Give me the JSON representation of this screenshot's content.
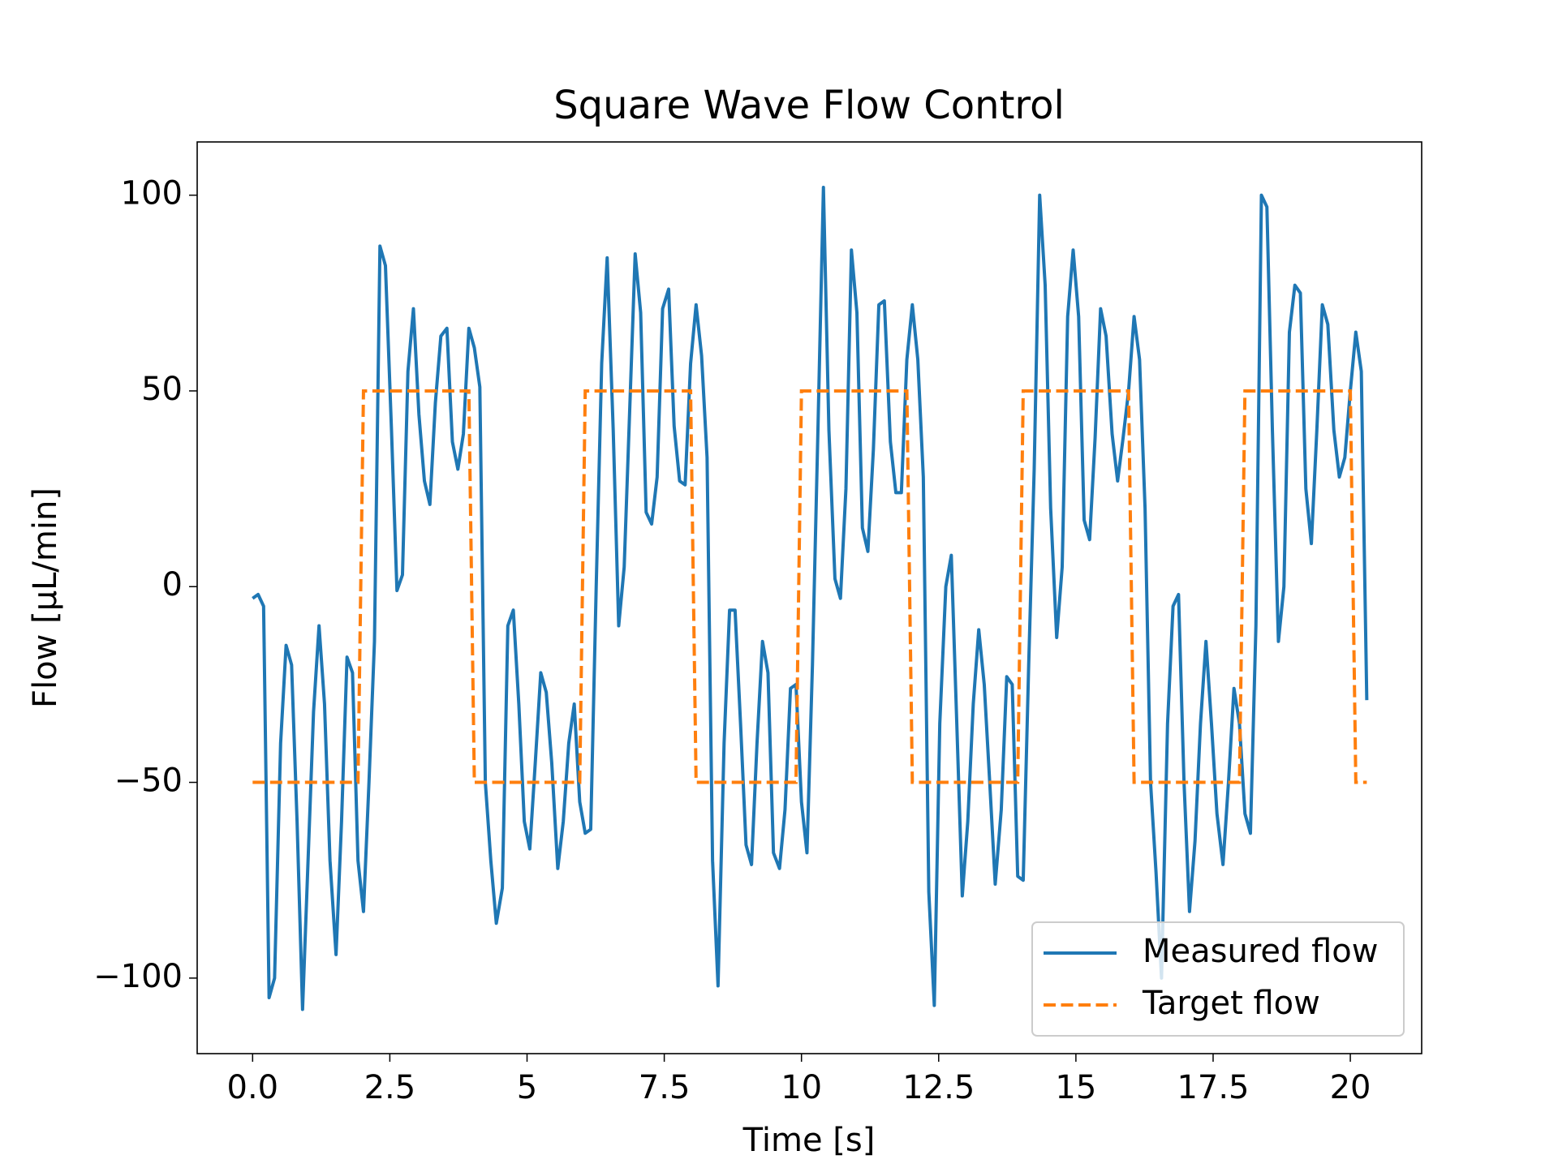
{
  "chart_data": {
    "type": "line",
    "title": "Square Wave Flow Control",
    "x_label": "Time [s]",
    "y_label": "Flow [µL/min]",
    "x": [
      0,
      0.1,
      0.2,
      0.3,
      0.4,
      0.51,
      0.61,
      0.71,
      0.81,
      0.91,
      1.01,
      1.11,
      1.21,
      1.31,
      1.41,
      1.52,
      1.62,
      1.72,
      1.82,
      1.92,
      2.02,
      2.12,
      2.22,
      2.32,
      2.42,
      2.53,
      2.63,
      2.73,
      2.83,
      2.93,
      3.03,
      3.13,
      3.23,
      3.33,
      3.43,
      3.54,
      3.64,
      3.74,
      3.84,
      3.94,
      4.04,
      4.14,
      4.24,
      4.34,
      4.44,
      4.55,
      4.65,
      4.75,
      4.85,
      4.95,
      5.05,
      5.15,
      5.25,
      5.35,
      5.45,
      5.56,
      5.66,
      5.76,
      5.86,
      5.96,
      6.06,
      6.16,
      6.26,
      6.36,
      6.46,
      6.57,
      6.67,
      6.77,
      6.87,
      6.97,
      7.07,
      7.17,
      7.27,
      7.37,
      7.47,
      7.58,
      7.68,
      7.78,
      7.88,
      7.98,
      8.08,
      8.18,
      8.28,
      8.38,
      8.48,
      8.59,
      8.69,
      8.79,
      8.89,
      8.99,
      9.09,
      9.19,
      9.29,
      9.39,
      9.49,
      9.6,
      9.7,
      9.8,
      9.9,
      10.0,
      10.1,
      10.2,
      10.3,
      10.4,
      10.5,
      10.61,
      10.71,
      10.81,
      10.91,
      11.01,
      11.11,
      11.21,
      11.31,
      11.41,
      11.51,
      11.62,
      11.72,
      11.82,
      11.92,
      12.02,
      12.12,
      12.22,
      12.32,
      12.42,
      12.52,
      12.63,
      12.73,
      12.83,
      12.93,
      13.03,
      13.13,
      13.23,
      13.33,
      13.43,
      13.53,
      13.64,
      13.74,
      13.84,
      13.94,
      14.04,
      14.14,
      14.24,
      14.34,
      14.44,
      14.54,
      14.65,
      14.75,
      14.85,
      14.95,
      15.05,
      15.15,
      15.25,
      15.35,
      15.45,
      15.55,
      15.66,
      15.76,
      15.86,
      15.96,
      16.06,
      16.16,
      16.26,
      16.36,
      16.46,
      16.56,
      16.67,
      16.77,
      16.87,
      16.97,
      17.07,
      17.17,
      17.27,
      17.37,
      17.47,
      17.57,
      17.68,
      17.78,
      17.88,
      17.98,
      18.08,
      18.18,
      18.28,
      18.38,
      18.48,
      18.58,
      18.69,
      18.79,
      18.89,
      18.99,
      19.09,
      19.19,
      19.29,
      19.39,
      19.49,
      19.59,
      19.7,
      19.8,
      19.9,
      20.0,
      20.1,
      20.2,
      20.3
    ],
    "series": [
      {
        "name": "Measured flow",
        "color": "#1f77b4",
        "dash": "solid",
        "values": [
          -3,
          -2,
          -5,
          -105,
          -100,
          -40,
          -15,
          -20,
          -60,
          -108,
          -70,
          -32,
          -10,
          -30,
          -70,
          -94,
          -60,
          -18,
          -22,
          -70,
          -83,
          -50,
          -14,
          87,
          82,
          40,
          -1,
          3,
          55,
          71,
          44,
          27,
          21,
          47,
          64,
          66,
          37,
          30,
          39,
          66,
          61,
          51,
          -50,
          -70,
          -86,
          -77,
          -10,
          -6,
          -30,
          -60,
          -67,
          -45,
          -22,
          -27,
          -45,
          -72,
          -60,
          -40,
          -30,
          -55,
          -63,
          -62,
          0,
          57,
          84,
          40,
          -10,
          5,
          45,
          85,
          70,
          19,
          16,
          28,
          71,
          76,
          41,
          27,
          26,
          57,
          72,
          59,
          33,
          -70,
          -102,
          -40,
          -6,
          -6,
          -35,
          -66,
          -71,
          -40,
          -14,
          -22,
          -68,
          -72,
          -57,
          -26,
          -25,
          -55,
          -68,
          -20,
          40,
          102,
          40,
          2,
          -3,
          25,
          86,
          70,
          15,
          9,
          35,
          72,
          73,
          37,
          24,
          24,
          58,
          72,
          58,
          28,
          -78,
          -107,
          -35,
          0,
          8,
          -35,
          -79,
          -60,
          -30,
          -11,
          -25,
          -50,
          -76,
          -57,
          -23,
          -25,
          -74,
          -75,
          -20,
          30,
          100,
          77,
          20,
          -13,
          5,
          69,
          86,
          69,
          17,
          12,
          38,
          71,
          64,
          39,
          27,
          38,
          50,
          69,
          58,
          20,
          -50,
          -73,
          -100,
          -35,
          -5,
          -2,
          -50,
          -83,
          -65,
          -35,
          -14,
          -35,
          -58,
          -71,
          -50,
          -26,
          -35,
          -58,
          -63,
          -10,
          100,
          97,
          40,
          -14,
          0,
          65,
          77,
          75,
          25,
          11,
          40,
          72,
          67,
          40,
          28,
          33,
          50,
          65,
          55,
          -29
        ]
      },
      {
        "name": "Target flow",
        "color": "#ff7f0e",
        "dash": "dashed",
        "values": [
          -50,
          -50,
          -50,
          -50,
          -50,
          -50,
          -50,
          -50,
          -50,
          -50,
          -50,
          -50,
          -50,
          -50,
          -50,
          -50,
          -50,
          -50,
          -50,
          -50,
          50,
          50,
          50,
          50,
          50,
          50,
          50,
          50,
          50,
          50,
          50,
          50,
          50,
          50,
          50,
          50,
          50,
          50,
          50,
          50,
          -50,
          -50,
          -50,
          -50,
          -50,
          -50,
          -50,
          -50,
          -50,
          -50,
          -50,
          -50,
          -50,
          -50,
          -50,
          -50,
          -50,
          -50,
          -50,
          -50,
          50,
          50,
          50,
          50,
          50,
          50,
          50,
          50,
          50,
          50,
          50,
          50,
          50,
          50,
          50,
          50,
          50,
          50,
          50,
          50,
          -50,
          -50,
          -50,
          -50,
          -50,
          -50,
          -50,
          -50,
          -50,
          -50,
          -50,
          -50,
          -50,
          -50,
          -50,
          -50,
          -50,
          -50,
          -50,
          50,
          50,
          50,
          50,
          50,
          50,
          50,
          50,
          50,
          50,
          50,
          50,
          50,
          50,
          50,
          50,
          50,
          50,
          50,
          50,
          -50,
          -50,
          -50,
          -50,
          -50,
          -50,
          -50,
          -50,
          -50,
          -50,
          -50,
          -50,
          -50,
          -50,
          -50,
          -50,
          -50,
          -50,
          -50,
          -50,
          50,
          50,
          50,
          50,
          50,
          50,
          50,
          50,
          50,
          50,
          50,
          50,
          50,
          50,
          50,
          50,
          50,
          50,
          50,
          50,
          -50,
          -50,
          -50,
          -50,
          -50,
          -50,
          -50,
          -50,
          -50,
          -50,
          -50,
          -50,
          -50,
          -50,
          -50,
          -50,
          -50,
          -50,
          -50,
          -50,
          50,
          50,
          50,
          50,
          50,
          50,
          50,
          50,
          50,
          50,
          50,
          50,
          50,
          50,
          50,
          50,
          50,
          50,
          50,
          50,
          -50,
          -50,
          -50
        ]
      }
    ],
    "xlim": [
      -1.01,
      21.3
    ],
    "ylim": [
      -119.3,
      113.6
    ],
    "xticks": [
      {
        "value": 0,
        "label": "0.0"
      },
      2.5,
      5.0,
      7.5,
      10.0,
      12.5,
      15.0,
      17.5,
      20.0
    ],
    "yticks": [
      {
        "value": -100,
        "label": "−100"
      },
      {
        "value": -50,
        "label": "−50"
      },
      0,
      50,
      100
    ],
    "grid": false,
    "legend": "lower right"
  }
}
